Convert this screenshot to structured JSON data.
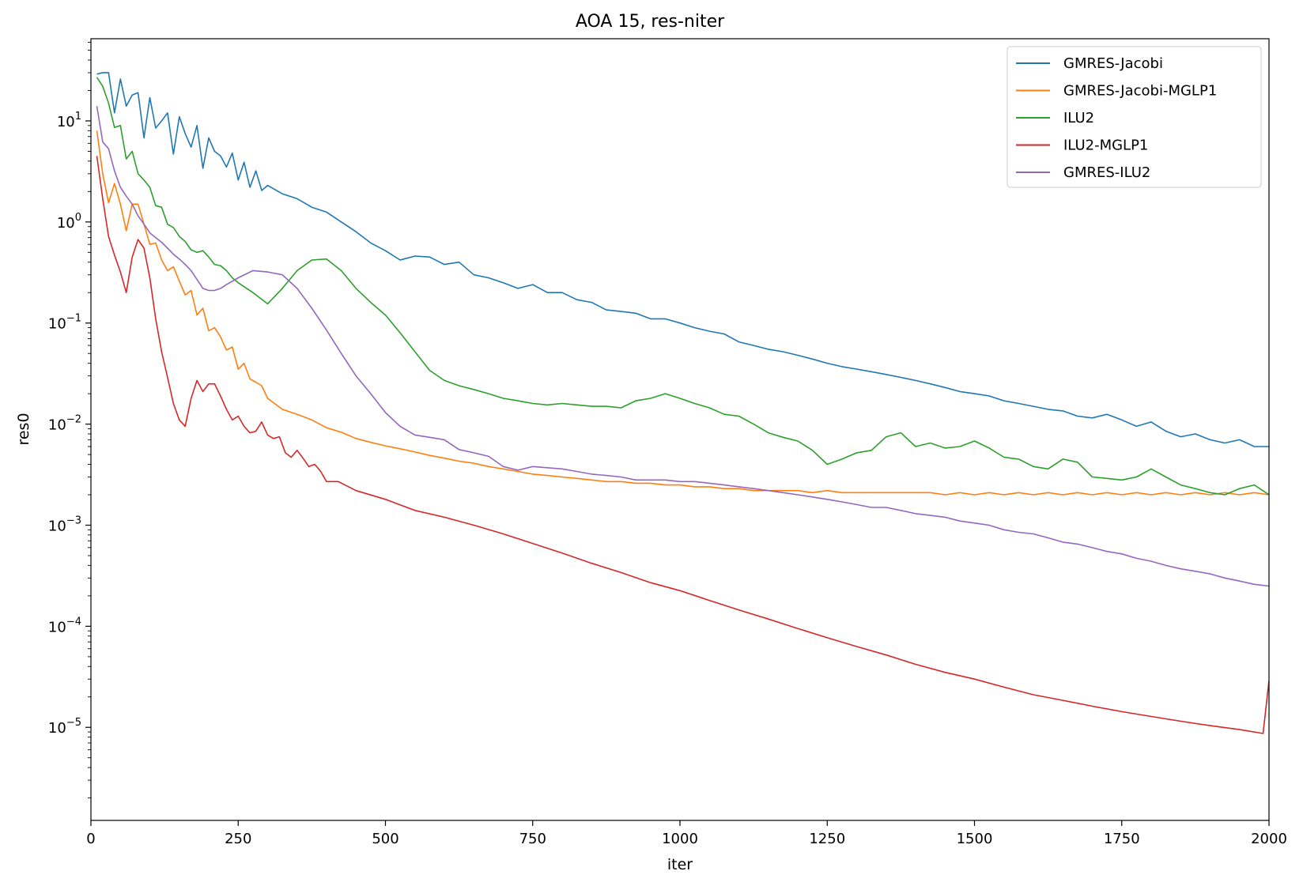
{
  "chart_data": {
    "type": "line",
    "title": "AOA 15, res-niter",
    "xlabel": "iter",
    "ylabel": "res0",
    "xlim": [
      0,
      2000
    ],
    "ylim": [
      1.2e-06,
      65
    ],
    "yscale": "log",
    "grid": false,
    "legend_position": "top-right",
    "xticks": [
      {
        "value": 0,
        "label": "0"
      },
      {
        "value": 250,
        "label": "250"
      },
      {
        "value": 500,
        "label": "500"
      },
      {
        "value": 750,
        "label": "750"
      },
      {
        "value": 1000,
        "label": "1000"
      },
      {
        "value": 1250,
        "label": "1250"
      },
      {
        "value": 1500,
        "label": "1500"
      },
      {
        "value": 1750,
        "label": "1750"
      },
      {
        "value": 2000,
        "label": "2000"
      }
    ],
    "yticks": [
      {
        "value": 10,
        "base": "10",
        "exp": "1"
      },
      {
        "value": 1,
        "base": "10",
        "exp": "0"
      },
      {
        "value": 0.1,
        "base": "10",
        "exp": "−1"
      },
      {
        "value": 0.01,
        "base": "10",
        "exp": "−2"
      },
      {
        "value": 0.001,
        "base": "10",
        "exp": "−3"
      },
      {
        "value": 0.0001,
        "base": "10",
        "exp": "−4"
      },
      {
        "value": 1e-05,
        "base": "10",
        "exp": "−5"
      }
    ],
    "series": [
      {
        "name": "GMRES-Jacobi",
        "color": "#1f77b4",
        "x": [
          10,
          20,
          30,
          40,
          50,
          60,
          70,
          80,
          90,
          100,
          110,
          120,
          130,
          140,
          150,
          160,
          170,
          180,
          190,
          200,
          210,
          220,
          230,
          240,
          250,
          260,
          270,
          280,
          290,
          300,
          325,
          350,
          375,
          400,
          425,
          450,
          475,
          500,
          525,
          550,
          575,
          600,
          625,
          650,
          675,
          700,
          725,
          750,
          775,
          800,
          825,
          850,
          875,
          900,
          925,
          950,
          975,
          1000,
          1025,
          1050,
          1075,
          1100,
          1125,
          1150,
          1175,
          1200,
          1225,
          1250,
          1275,
          1300,
          1325,
          1350,
          1375,
          1400,
          1425,
          1450,
          1475,
          1500,
          1525,
          1550,
          1575,
          1600,
          1625,
          1650,
          1675,
          1700,
          1725,
          1750,
          1775,
          1800,
          1825,
          1850,
          1875,
          1900,
          1925,
          1950,
          1975,
          2000
        ],
        "values": [
          29,
          30,
          30,
          12,
          26,
          14,
          18,
          19,
          6.8,
          17,
          8.5,
          10,
          12,
          4.7,
          11,
          7.5,
          5.5,
          9,
          3.4,
          6.8,
          5,
          4.5,
          3.5,
          4.8,
          2.6,
          3.9,
          2.2,
          3.2,
          2.05,
          2.3,
          1.9,
          1.7,
          1.4,
          1.25,
          1.0,
          0.8,
          0.62,
          0.52,
          0.42,
          0.46,
          0.45,
          0.38,
          0.4,
          0.3,
          0.28,
          0.25,
          0.22,
          0.24,
          0.2,
          0.2,
          0.17,
          0.16,
          0.135,
          0.13,
          0.125,
          0.11,
          0.11,
          0.1,
          0.09,
          0.083,
          0.078,
          0.065,
          0.06,
          0.055,
          0.052,
          0.048,
          0.044,
          0.04,
          0.037,
          0.035,
          0.033,
          0.031,
          0.029,
          0.027,
          0.025,
          0.023,
          0.021,
          0.02,
          0.019,
          0.017,
          0.016,
          0.015,
          0.014,
          0.0135,
          0.012,
          0.0115,
          0.0125,
          0.011,
          0.0095,
          0.0105,
          0.0085,
          0.0075,
          0.008,
          0.007,
          0.0065,
          0.007,
          0.006,
          0.006
        ]
      },
      {
        "name": "GMRES-Jacobi-MGLP1",
        "color": "#ff7f0e",
        "x": [
          10,
          20,
          30,
          40,
          50,
          60,
          70,
          80,
          90,
          100,
          110,
          120,
          130,
          140,
          150,
          160,
          170,
          180,
          190,
          200,
          210,
          220,
          230,
          240,
          250,
          260,
          270,
          280,
          290,
          300,
          325,
          350,
          375,
          400,
          425,
          450,
          475,
          500,
          525,
          550,
          575,
          600,
          625,
          650,
          675,
          700,
          725,
          750,
          775,
          800,
          825,
          850,
          875,
          900,
          925,
          950,
          975,
          1000,
          1025,
          1050,
          1075,
          1100,
          1125,
          1150,
          1175,
          1200,
          1225,
          1250,
          1275,
          1300,
          1325,
          1350,
          1375,
          1400,
          1425,
          1450,
          1475,
          1500,
          1525,
          1550,
          1575,
          1600,
          1625,
          1650,
          1675,
          1700,
          1725,
          1750,
          1775,
          1800,
          1825,
          1850,
          1875,
          1900,
          1925,
          1950,
          1975,
          2000
        ],
        "values": [
          8,
          3,
          1.55,
          2.4,
          1.5,
          0.82,
          1.5,
          1.5,
          0.95,
          0.6,
          0.62,
          0.42,
          0.33,
          0.36,
          0.26,
          0.19,
          0.21,
          0.12,
          0.14,
          0.084,
          0.09,
          0.073,
          0.054,
          0.058,
          0.035,
          0.04,
          0.028,
          0.026,
          0.024,
          0.018,
          0.014,
          0.0125,
          0.011,
          0.0092,
          0.0083,
          0.0072,
          0.0066,
          0.0061,
          0.0057,
          0.0053,
          0.0049,
          0.0046,
          0.0043,
          0.0041,
          0.0038,
          0.0036,
          0.0034,
          0.0032,
          0.0031,
          0.003,
          0.0029,
          0.0028,
          0.0027,
          0.0027,
          0.0026,
          0.0026,
          0.0025,
          0.0025,
          0.0024,
          0.0024,
          0.0023,
          0.0023,
          0.0022,
          0.0022,
          0.0022,
          0.0022,
          0.0021,
          0.0022,
          0.0021,
          0.0021,
          0.0021,
          0.0021,
          0.0021,
          0.0021,
          0.0021,
          0.002,
          0.0021,
          0.002,
          0.0021,
          0.002,
          0.0021,
          0.002,
          0.0021,
          0.002,
          0.0021,
          0.002,
          0.0021,
          0.002,
          0.0021,
          0.002,
          0.0021,
          0.002,
          0.0021,
          0.002,
          0.0021,
          0.002,
          0.0021,
          0.002
        ]
      },
      {
        "name": "ILU2",
        "color": "#2ca02c",
        "x": [
          10,
          20,
          30,
          40,
          50,
          60,
          70,
          80,
          90,
          100,
          110,
          120,
          130,
          140,
          150,
          160,
          170,
          180,
          190,
          200,
          210,
          220,
          230,
          240,
          250,
          275,
          300,
          325,
          350,
          375,
          400,
          425,
          450,
          475,
          500,
          525,
          550,
          575,
          600,
          625,
          650,
          675,
          700,
          725,
          750,
          775,
          800,
          825,
          850,
          875,
          900,
          925,
          950,
          975,
          1000,
          1025,
          1050,
          1075,
          1100,
          1125,
          1150,
          1175,
          1200,
          1225,
          1250,
          1275,
          1300,
          1325,
          1350,
          1375,
          1400,
          1425,
          1450,
          1475,
          1500,
          1525,
          1550,
          1575,
          1600,
          1625,
          1650,
          1675,
          1700,
          1725,
          1750,
          1775,
          1800,
          1825,
          1850,
          1875,
          1900,
          1925,
          1950,
          1975,
          2000
        ],
        "values": [
          27,
          22,
          15,
          8.6,
          9,
          4.2,
          5,
          3,
          2.6,
          2.2,
          1.45,
          1.4,
          0.95,
          0.88,
          0.72,
          0.64,
          0.53,
          0.5,
          0.52,
          0.45,
          0.38,
          0.37,
          0.33,
          0.28,
          0.25,
          0.2,
          0.155,
          0.22,
          0.33,
          0.42,
          0.43,
          0.33,
          0.22,
          0.16,
          0.12,
          0.08,
          0.052,
          0.034,
          0.027,
          0.024,
          0.022,
          0.02,
          0.018,
          0.017,
          0.016,
          0.0155,
          0.016,
          0.0155,
          0.015,
          0.015,
          0.0145,
          0.017,
          0.018,
          0.02,
          0.018,
          0.016,
          0.0145,
          0.0125,
          0.012,
          0.01,
          0.0082,
          0.0074,
          0.0068,
          0.0055,
          0.004,
          0.0045,
          0.0052,
          0.0055,
          0.0075,
          0.0082,
          0.006,
          0.0065,
          0.0058,
          0.006,
          0.0068,
          0.0058,
          0.0047,
          0.0045,
          0.0038,
          0.0036,
          0.0045,
          0.0042,
          0.003,
          0.0029,
          0.0028,
          0.003,
          0.0036,
          0.003,
          0.0025,
          0.0023,
          0.0021,
          0.002,
          0.0023,
          0.0025,
          0.002
        ]
      },
      {
        "name": "ILU2-MGLP1",
        "color": "#d62728",
        "x": [
          10,
          20,
          30,
          40,
          50,
          60,
          70,
          80,
          90,
          100,
          110,
          120,
          130,
          140,
          150,
          160,
          170,
          180,
          190,
          200,
          210,
          220,
          230,
          240,
          250,
          260,
          270,
          280,
          290,
          300,
          310,
          320,
          330,
          340,
          350,
          360,
          370,
          380,
          390,
          400,
          420,
          450,
          500,
          550,
          600,
          650,
          700,
          750,
          800,
          850,
          900,
          950,
          1000,
          1050,
          1100,
          1150,
          1200,
          1250,
          1300,
          1350,
          1400,
          1450,
          1500,
          1550,
          1600,
          1650,
          1700,
          1750,
          1800,
          1850,
          1900,
          1950,
          1990,
          2000
        ],
        "values": [
          4.5,
          1.7,
          0.72,
          0.47,
          0.32,
          0.2,
          0.45,
          0.67,
          0.55,
          0.28,
          0.11,
          0.052,
          0.029,
          0.016,
          0.011,
          0.0095,
          0.018,
          0.027,
          0.021,
          0.025,
          0.025,
          0.019,
          0.014,
          0.011,
          0.012,
          0.0095,
          0.0082,
          0.0085,
          0.0105,
          0.0078,
          0.0072,
          0.0075,
          0.0052,
          0.0047,
          0.0055,
          0.0046,
          0.0038,
          0.004,
          0.0034,
          0.0027,
          0.0027,
          0.0022,
          0.0018,
          0.0014,
          0.0012,
          0.001,
          0.00082,
          0.00066,
          0.00053,
          0.00042,
          0.00034,
          0.00027,
          0.000225,
          0.00018,
          0.000145,
          0.000118,
          9.5e-05,
          7.7e-05,
          6.3e-05,
          5.2e-05,
          4.2e-05,
          3.5e-05,
          3e-05,
          2.5e-05,
          2.1e-05,
          1.85e-05,
          1.62e-05,
          1.43e-05,
          1.28e-05,
          1.15e-05,
          1.04e-05,
          9.5e-06,
          8.7e-06,
          2.9e-05
        ]
      },
      {
        "name": "GMRES-ILU2",
        "color": "#9467bd",
        "x": [
          10,
          20,
          30,
          40,
          50,
          60,
          70,
          80,
          90,
          100,
          110,
          120,
          130,
          140,
          150,
          160,
          170,
          180,
          190,
          200,
          210,
          220,
          230,
          250,
          275,
          300,
          325,
          350,
          375,
          400,
          425,
          450,
          475,
          500,
          525,
          550,
          575,
          600,
          625,
          650,
          675,
          700,
          725,
          750,
          775,
          800,
          825,
          850,
          875,
          900,
          925,
          950,
          975,
          1000,
          1025,
          1050,
          1075,
          1100,
          1125,
          1150,
          1175,
          1200,
          1225,
          1250,
          1275,
          1300,
          1325,
          1350,
          1375,
          1400,
          1425,
          1450,
          1475,
          1500,
          1525,
          1550,
          1575,
          1600,
          1625,
          1650,
          1675,
          1700,
          1725,
          1750,
          1775,
          1800,
          1825,
          1850,
          1875,
          1900,
          1925,
          1950,
          1975,
          2000
        ],
        "values": [
          14,
          6.2,
          5.3,
          3.2,
          2.2,
          1.8,
          1.5,
          1.15,
          0.95,
          0.78,
          0.7,
          0.63,
          0.55,
          0.48,
          0.43,
          0.38,
          0.33,
          0.27,
          0.22,
          0.21,
          0.21,
          0.22,
          0.24,
          0.28,
          0.33,
          0.32,
          0.3,
          0.22,
          0.14,
          0.085,
          0.05,
          0.03,
          0.02,
          0.013,
          0.0095,
          0.0078,
          0.0074,
          0.007,
          0.0056,
          0.0052,
          0.0048,
          0.0038,
          0.0035,
          0.0038,
          0.0037,
          0.0036,
          0.0034,
          0.0032,
          0.0031,
          0.003,
          0.0028,
          0.0028,
          0.0028,
          0.0027,
          0.0027,
          0.0026,
          0.0025,
          0.0024,
          0.0023,
          0.0022,
          0.0021,
          0.002,
          0.0019,
          0.0018,
          0.0017,
          0.0016,
          0.0015,
          0.0015,
          0.0014,
          0.0013,
          0.00125,
          0.0012,
          0.0011,
          0.00105,
          0.001,
          0.0009,
          0.00085,
          0.00082,
          0.00075,
          0.00068,
          0.00065,
          0.0006,
          0.00055,
          0.00052,
          0.00047,
          0.00044,
          0.0004,
          0.00037,
          0.00035,
          0.00033,
          0.0003,
          0.00028,
          0.00026,
          0.00025
        ]
      }
    ]
  }
}
